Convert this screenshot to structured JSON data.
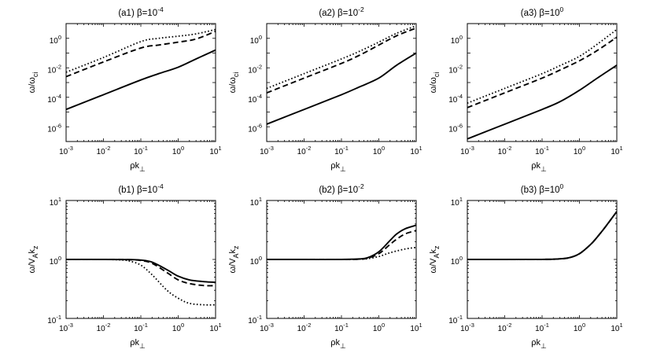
{
  "chart_data": [
    {
      "id": "a1",
      "type": "line",
      "title_prefix": "(a1)  β=10",
      "title_exp": "-4",
      "xlabel": "ρk",
      "xlabel_sub": "⊥",
      "ylabel": "ω/ω",
      "ylabel_sub": "ci",
      "xscale": "log",
      "yscale": "log",
      "xlim": [
        0.001,
        10
      ],
      "ylim": [
        1e-07,
        10
      ],
      "xticks": [
        {
          "value": 0.001,
          "base": "10",
          "exp": "-3"
        },
        {
          "value": 0.01,
          "base": "10",
          "exp": "-2"
        },
        {
          "value": 0.1,
          "base": "10",
          "exp": "-1"
        },
        {
          "value": 1,
          "base": "10",
          "exp": "0"
        },
        {
          "value": 10,
          "base": "10",
          "exp": "1"
        }
      ],
      "yticks": [
        {
          "value": 1e-06,
          "base": "10",
          "exp": "-6"
        },
        {
          "value": 0.0001,
          "base": "10",
          "exp": "-4"
        },
        {
          "value": 0.01,
          "base": "10",
          "exp": "-2"
        },
        {
          "value": 1,
          "base": "10",
          "exp": "0"
        }
      ],
      "series": [
        {
          "name": "solid",
          "style": "solid",
          "x": [
            0.001,
            0.01,
            0.1,
            0.3,
            1,
            3,
            10
          ],
          "y": [
            1.5e-05,
            0.00015,
            0.0015,
            0.004,
            0.011,
            0.04,
            0.16
          ]
        },
        {
          "name": "dashed",
          "style": "dashed",
          "x": [
            0.001,
            0.01,
            0.1,
            0.3,
            1,
            3,
            10
          ],
          "y": [
            0.0025,
            0.025,
            0.22,
            0.35,
            0.55,
            0.9,
            3
          ]
        },
        {
          "name": "dotted",
          "style": "dotted",
          "x": [
            0.001,
            0.01,
            0.1,
            0.3,
            1,
            3,
            10
          ],
          "y": [
            0.005,
            0.05,
            0.6,
            1.0,
            1.4,
            2.0,
            4
          ]
        }
      ]
    },
    {
      "id": "a2",
      "type": "line",
      "title_prefix": "(a2)  β=10",
      "title_exp": "-2",
      "xlabel": "ρk",
      "xlabel_sub": "⊥",
      "ylabel": "ω/ω",
      "ylabel_sub": "ci",
      "xscale": "log",
      "yscale": "log",
      "xlim": [
        0.001,
        10
      ],
      "ylim": [
        1e-07,
        10
      ],
      "xticks": [
        {
          "value": 0.001,
          "base": "10",
          "exp": "-3"
        },
        {
          "value": 0.01,
          "base": "10",
          "exp": "-2"
        },
        {
          "value": 0.1,
          "base": "10",
          "exp": "-1"
        },
        {
          "value": 1,
          "base": "10",
          "exp": "0"
        },
        {
          "value": 10,
          "base": "10",
          "exp": "1"
        }
      ],
      "yticks": [
        {
          "value": 1e-06,
          "base": "10",
          "exp": "-6"
        },
        {
          "value": 0.0001,
          "base": "10",
          "exp": "-4"
        },
        {
          "value": 0.01,
          "base": "10",
          "exp": "-2"
        },
        {
          "value": 1,
          "base": "10",
          "exp": "0"
        }
      ],
      "series": [
        {
          "name": "solid",
          "style": "solid",
          "x": [
            0.001,
            0.01,
            0.1,
            0.3,
            1,
            3,
            10
          ],
          "y": [
            1.5e-06,
            1.5e-05,
            0.00015,
            0.0005,
            0.002,
            0.015,
            0.1
          ]
        },
        {
          "name": "dashed",
          "style": "dashed",
          "x": [
            0.001,
            0.01,
            0.1,
            0.3,
            1,
            3,
            10
          ],
          "y": [
            0.0002,
            0.002,
            0.02,
            0.07,
            0.35,
            1.5,
            5
          ]
        },
        {
          "name": "dotted",
          "style": "dotted",
          "x": [
            0.001,
            0.01,
            0.1,
            0.3,
            1,
            3,
            10
          ],
          "y": [
            0.0004,
            0.004,
            0.04,
            0.13,
            0.55,
            2.2,
            7
          ]
        }
      ]
    },
    {
      "id": "a3",
      "type": "line",
      "title_prefix": "(a3)  β=10",
      "title_exp": "0",
      "xlabel": "ρk",
      "xlabel_sub": "⊥",
      "ylabel": "ω/ω",
      "ylabel_sub": "ci",
      "xscale": "log",
      "yscale": "log",
      "xlim": [
        0.001,
        10
      ],
      "ylim": [
        1e-07,
        10
      ],
      "xticks": [
        {
          "value": 0.001,
          "base": "10",
          "exp": "-3"
        },
        {
          "value": 0.01,
          "base": "10",
          "exp": "-2"
        },
        {
          "value": 0.1,
          "base": "10",
          "exp": "-1"
        },
        {
          "value": 1,
          "base": "10",
          "exp": "0"
        },
        {
          "value": 10,
          "base": "10",
          "exp": "1"
        }
      ],
      "yticks": [
        {
          "value": 1e-06,
          "base": "10",
          "exp": "-6"
        },
        {
          "value": 0.0001,
          "base": "10",
          "exp": "-4"
        },
        {
          "value": 0.01,
          "base": "10",
          "exp": "-2"
        },
        {
          "value": 1,
          "base": "10",
          "exp": "0"
        }
      ],
      "series": [
        {
          "name": "solid",
          "style": "solid",
          "x": [
            0.001,
            0.01,
            0.1,
            0.3,
            1,
            3,
            10
          ],
          "y": [
            1.5e-07,
            1.5e-06,
            1.5e-05,
            5e-05,
            0.0003,
            0.002,
            0.015
          ]
        },
        {
          "name": "dashed",
          "style": "dashed",
          "x": [
            0.001,
            0.01,
            0.1,
            0.3,
            1,
            3,
            10
          ],
          "y": [
            2e-05,
            0.0002,
            0.002,
            0.007,
            0.03,
            0.15,
            1.2
          ]
        },
        {
          "name": "dotted",
          "style": "dotted",
          "x": [
            0.001,
            0.01,
            0.1,
            0.3,
            1,
            3,
            10
          ],
          "y": [
            4e-05,
            0.0004,
            0.004,
            0.014,
            0.06,
            0.4,
            4
          ]
        }
      ]
    },
    {
      "id": "b1",
      "type": "line",
      "title_prefix": "(b1)  β=10",
      "title_exp": "-4",
      "xlabel": "ρk",
      "xlabel_sub": "⊥",
      "ylabel": "ω/V",
      "ylabel_sub": "A",
      "ylabel_tail": "k",
      "ylabel_tail_sub": "z",
      "xscale": "log",
      "yscale": "log",
      "xlim": [
        0.001,
        10
      ],
      "ylim": [
        0.1,
        10
      ],
      "xticks": [
        {
          "value": 0.001,
          "base": "10",
          "exp": "-3"
        },
        {
          "value": 0.01,
          "base": "10",
          "exp": "-2"
        },
        {
          "value": 0.1,
          "base": "10",
          "exp": "-1"
        },
        {
          "value": 1,
          "base": "10",
          "exp": "0"
        },
        {
          "value": 10,
          "base": "10",
          "exp": "1"
        }
      ],
      "yticks": [
        {
          "value": 0.1,
          "base": "10",
          "exp": "-1"
        },
        {
          "value": 1,
          "base": "10",
          "exp": "0"
        },
        {
          "value": 10,
          "base": "10",
          "exp": "1"
        }
      ],
      "series": [
        {
          "name": "solid",
          "style": "solid",
          "x": [
            0.001,
            0.01,
            0.05,
            0.1,
            0.2,
            0.5,
            1,
            2,
            5,
            10
          ],
          "y": [
            1,
            1,
            0.995,
            0.975,
            0.9,
            0.67,
            0.52,
            0.45,
            0.42,
            0.41
          ]
        },
        {
          "name": "dashed",
          "style": "dashed",
          "x": [
            0.001,
            0.01,
            0.05,
            0.1,
            0.2,
            0.5,
            1,
            2,
            5,
            10
          ],
          "y": [
            1,
            1,
            0.99,
            0.96,
            0.86,
            0.6,
            0.45,
            0.39,
            0.36,
            0.36
          ]
        },
        {
          "name": "dotted",
          "style": "dotted",
          "x": [
            0.001,
            0.01,
            0.03,
            0.05,
            0.1,
            0.2,
            0.5,
            1,
            2,
            5,
            10
          ],
          "y": [
            1,
            1,
            0.98,
            0.94,
            0.8,
            0.55,
            0.3,
            0.22,
            0.18,
            0.17,
            0.17
          ]
        }
      ]
    },
    {
      "id": "b2",
      "type": "line",
      "title_prefix": "(b2)  β=10",
      "title_exp": "-2",
      "xlabel": "ρk",
      "xlabel_sub": "⊥",
      "ylabel": "ω/V",
      "ylabel_sub": "A",
      "ylabel_tail": "k",
      "ylabel_tail_sub": "z",
      "xscale": "log",
      "yscale": "log",
      "xlim": [
        0.001,
        10
      ],
      "ylim": [
        0.1,
        10
      ],
      "xticks": [
        {
          "value": 0.001,
          "base": "10",
          "exp": "-3"
        },
        {
          "value": 0.01,
          "base": "10",
          "exp": "-2"
        },
        {
          "value": 0.1,
          "base": "10",
          "exp": "-1"
        },
        {
          "value": 1,
          "base": "10",
          "exp": "0"
        },
        {
          "value": 10,
          "base": "10",
          "exp": "1"
        }
      ],
      "yticks": [
        {
          "value": 0.1,
          "base": "10",
          "exp": "-1"
        },
        {
          "value": 1,
          "base": "10",
          "exp": "0"
        },
        {
          "value": 10,
          "base": "10",
          "exp": "1"
        }
      ],
      "series": [
        {
          "name": "solid",
          "style": "solid",
          "x": [
            0.001,
            0.01,
            0.1,
            0.3,
            0.5,
            1,
            2,
            3,
            5,
            10
          ],
          "y": [
            1,
            1,
            1,
            1.02,
            1.07,
            1.35,
            2.1,
            2.7,
            3.3,
            3.8
          ]
        },
        {
          "name": "dashed",
          "style": "dashed",
          "x": [
            0.001,
            0.01,
            0.1,
            0.3,
            0.5,
            1,
            2,
            3,
            5,
            10
          ],
          "y": [
            1,
            1,
            1,
            1.01,
            1.05,
            1.25,
            1.8,
            2.2,
            2.7,
            3.1
          ]
        },
        {
          "name": "dotted",
          "style": "dotted",
          "x": [
            0.001,
            0.01,
            0.1,
            0.3,
            0.5,
            1,
            2,
            5,
            10
          ],
          "y": [
            1,
            1,
            1,
            1.01,
            1.03,
            1.12,
            1.3,
            1.5,
            1.6
          ]
        }
      ]
    },
    {
      "id": "b3",
      "type": "line",
      "title_prefix": "(b3)  β=10",
      "title_exp": "0",
      "xlabel": "ρk",
      "xlabel_sub": "⊥",
      "ylabel": "ω/V",
      "ylabel_sub": "A",
      "ylabel_tail": "k",
      "ylabel_tail_sub": "z",
      "xscale": "log",
      "yscale": "log",
      "xlim": [
        0.001,
        10
      ],
      "ylim": [
        0.1,
        10
      ],
      "xticks": [
        {
          "value": 0.001,
          "base": "10",
          "exp": "-3"
        },
        {
          "value": 0.01,
          "base": "10",
          "exp": "-2"
        },
        {
          "value": 0.1,
          "base": "10",
          "exp": "-1"
        },
        {
          "value": 1,
          "base": "10",
          "exp": "0"
        },
        {
          "value": 10,
          "base": "10",
          "exp": "1"
        }
      ],
      "yticks": [
        {
          "value": 0.1,
          "base": "10",
          "exp": "-1"
        },
        {
          "value": 1,
          "base": "10",
          "exp": "0"
        },
        {
          "value": 10,
          "base": "10",
          "exp": "1"
        }
      ],
      "series": [
        {
          "name": "solid",
          "style": "solid",
          "x": [
            0.001,
            0.01,
            0.1,
            0.2,
            0.5,
            1,
            2,
            3,
            5,
            10
          ],
          "y": [
            1,
            1,
            1.003,
            1.01,
            1.06,
            1.25,
            1.8,
            2.4,
            3.6,
            6.5
          ]
        },
        {
          "name": "dashed",
          "style": "dashed",
          "x": [
            0.001,
            0.01,
            0.1,
            0.2,
            0.5,
            1,
            2,
            3,
            5,
            10
          ],
          "y": [
            1,
            1,
            1.003,
            1.01,
            1.06,
            1.25,
            1.8,
            2.4,
            3.6,
            6.5
          ]
        },
        {
          "name": "dotted",
          "style": "dotted",
          "x": [
            0.001,
            0.01,
            0.1,
            0.2,
            0.5,
            1,
            2,
            3,
            5,
            10
          ],
          "y": [
            1,
            1,
            1.003,
            1.01,
            1.06,
            1.25,
            1.8,
            2.4,
            3.6,
            6.5
          ]
        }
      ]
    }
  ]
}
